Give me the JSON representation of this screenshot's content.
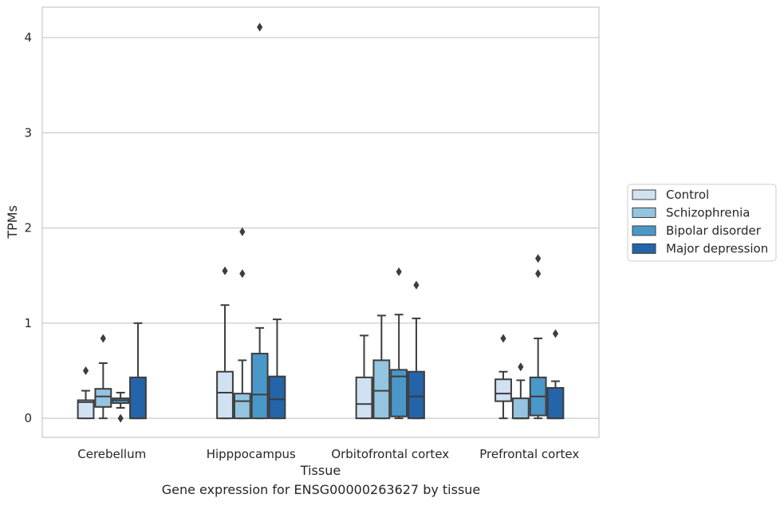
{
  "chart_data": {
    "type": "boxplot",
    "xlabel": "Tissue",
    "ylabel": "TPMs",
    "caption": "Gene expression for ENSG00000263627 by tissue",
    "ylim": [
      -0.2,
      4.32
    ],
    "yticks": [
      0,
      1,
      2,
      3,
      4
    ],
    "grid": true,
    "legend_position": "right",
    "categories": [
      "Cerebellum",
      "Hipppocampus",
      "Orbitofrontal cortex",
      "Prefrontal cortex"
    ],
    "series": [
      {
        "name": "Control",
        "color": "#d0e1f2",
        "boxes": [
          {
            "whislo": 0.0,
            "q1": 0.0,
            "med": 0.17,
            "q3": 0.19,
            "whishi": 0.29,
            "fliers": [
              0.5
            ]
          },
          {
            "whislo": 0.0,
            "q1": 0.0,
            "med": 0.27,
            "q3": 0.49,
            "whishi": 1.19,
            "fliers": [
              1.55
            ]
          },
          {
            "whislo": 0.0,
            "q1": 0.0,
            "med": 0.15,
            "q3": 0.43,
            "whishi": 0.87,
            "fliers": []
          },
          {
            "whislo": 0.0,
            "q1": 0.18,
            "med": 0.26,
            "q3": 0.41,
            "whishi": 0.49,
            "fliers": [
              0.84
            ]
          }
        ]
      },
      {
        "name": "Schizophrenia",
        "color": "#94c4df",
        "boxes": [
          {
            "whislo": 0.0,
            "q1": 0.12,
            "med": 0.23,
            "q3": 0.31,
            "whishi": 0.58,
            "fliers": [
              0.84
            ]
          },
          {
            "whislo": 0.0,
            "q1": 0.0,
            "med": 0.18,
            "q3": 0.26,
            "whishi": 0.61,
            "fliers": [
              1.52,
              1.96
            ]
          },
          {
            "whislo": 0.0,
            "q1": 0.0,
            "med": 0.29,
            "q3": 0.61,
            "whishi": 1.08,
            "fliers": []
          },
          {
            "whislo": 0.0,
            "q1": 0.0,
            "med": 0.0,
            "q3": 0.21,
            "whishi": 0.4,
            "fliers": [
              0.54
            ]
          }
        ]
      },
      {
        "name": "Bipolar disorder",
        "color": "#4a98c9",
        "boxes": [
          {
            "whislo": 0.11,
            "q1": 0.16,
            "med": 0.19,
            "q3": 0.21,
            "whishi": 0.27,
            "fliers": [
              0.0
            ]
          },
          {
            "whislo": 0.0,
            "q1": 0.0,
            "med": 0.25,
            "q3": 0.68,
            "whishi": 0.95,
            "fliers": [
              4.11
            ]
          },
          {
            "whislo": 0.0,
            "q1": 0.02,
            "med": 0.44,
            "q3": 0.51,
            "whishi": 1.09,
            "fliers": [
              1.54
            ]
          },
          {
            "whislo": 0.0,
            "q1": 0.03,
            "med": 0.23,
            "q3": 0.43,
            "whishi": 0.84,
            "fliers": [
              1.52,
              1.68
            ]
          }
        ]
      },
      {
        "name": "Major depression",
        "color": "#2464a8",
        "boxes": [
          {
            "whislo": 0.0,
            "q1": 0.0,
            "med": 0.0,
            "q3": 0.43,
            "whishi": 1.0,
            "fliers": []
          },
          {
            "whislo": 0.0,
            "q1": 0.0,
            "med": 0.2,
            "q3": 0.44,
            "whishi": 1.04,
            "fliers": []
          },
          {
            "whislo": 0.0,
            "q1": 0.0,
            "med": 0.23,
            "q3": 0.49,
            "whishi": 1.05,
            "fliers": [
              1.4
            ]
          },
          {
            "whislo": 0.0,
            "q1": 0.0,
            "med": 0.0,
            "q3": 0.32,
            "whishi": 0.39,
            "fliers": [
              0.89
            ]
          }
        ]
      }
    ]
  }
}
